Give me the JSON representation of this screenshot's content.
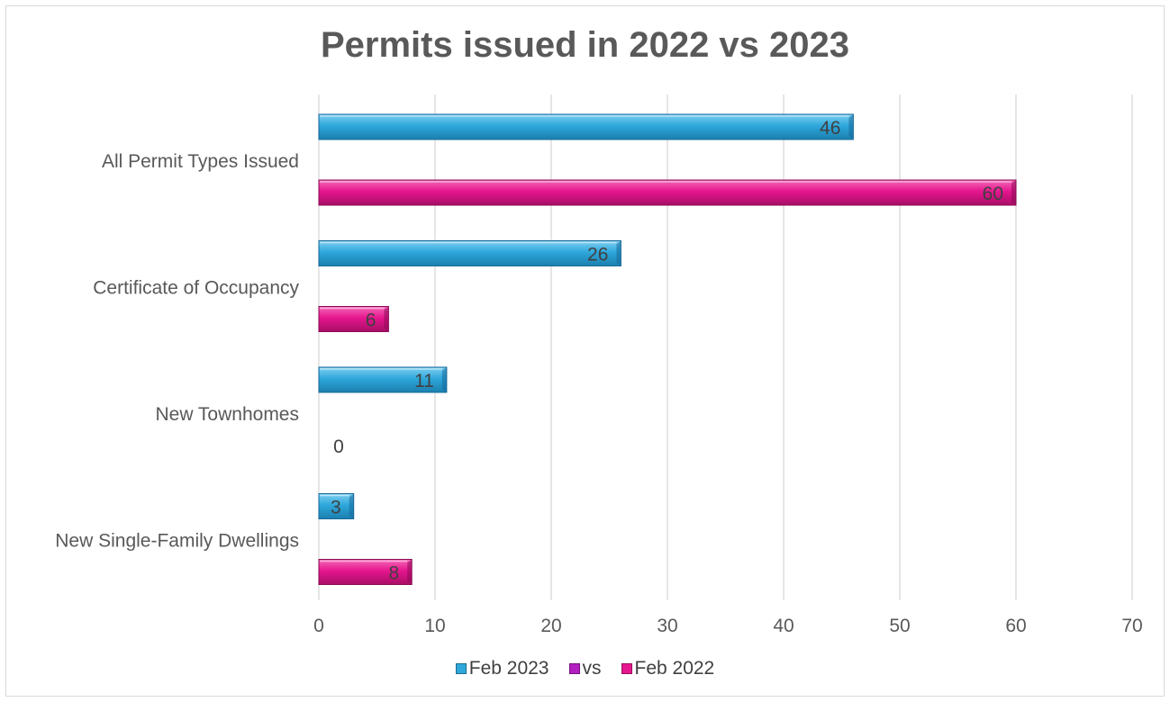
{
  "chart_data": {
    "type": "bar",
    "orientation": "horizontal",
    "title": "Permits issued in 2022 vs 2023",
    "categories": [
      "All Permit Types Issued",
      "Certificate of Occupancy",
      "New Townhomes",
      "New Single-Family Dwellings"
    ],
    "series": [
      {
        "name": "Feb 2023",
        "color": "#2ea7db",
        "values": [
          46,
          26,
          11,
          3
        ]
      },
      {
        "name": "vs",
        "color": "#b31fc0",
        "values": [
          null,
          null,
          null,
          null
        ]
      },
      {
        "name": "Feb 2022",
        "color": "#e5168e",
        "values": [
          60,
          6,
          0,
          8
        ]
      }
    ],
    "xlim": [
      0,
      70
    ],
    "xticks": [
      0,
      10,
      20,
      30,
      40,
      50,
      60,
      70
    ],
    "grid": true,
    "legend_position": "bottom",
    "data_labels": true
  }
}
